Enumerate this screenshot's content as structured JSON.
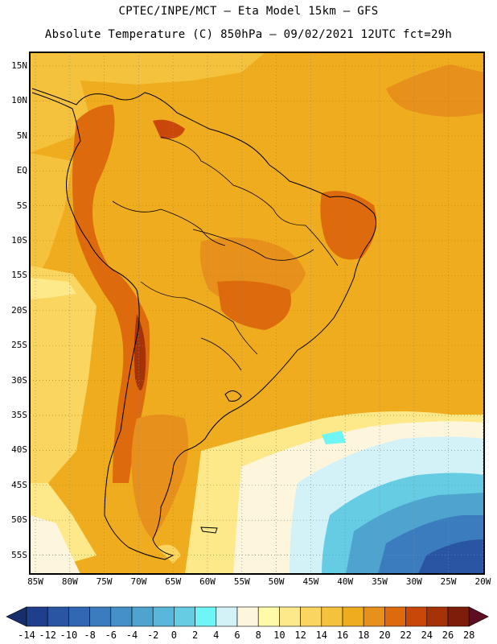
{
  "header": {
    "line1": "CPTEC/INPE/MCT –  Eta Model 15km – GFS",
    "line2": "Absolute Temperature (C) 850hPa – 09/02/2021 12UTC fct=29h"
  },
  "map": {
    "lat_labels": [
      "15N",
      "10N",
      "5N",
      "EQ",
      "5S",
      "10S",
      "15S",
      "20S",
      "25S",
      "30S",
      "35S",
      "40S",
      "45S",
      "50S",
      "55S"
    ],
    "lon_labels": [
      "85W",
      "80W",
      "75W",
      "70W",
      "65W",
      "60W",
      "55W",
      "50W",
      "45W",
      "40W",
      "35W",
      "30W",
      "25W",
      "20W"
    ]
  },
  "colorbar": {
    "labels": [
      "-14",
      "-12",
      "-10",
      "-8",
      "-6",
      "-4",
      "-2",
      "0",
      "2",
      "4",
      "6",
      "8",
      "10",
      "12",
      "14",
      "16",
      "18",
      "20",
      "22",
      "24",
      "26",
      "28"
    ],
    "colors": [
      "#1e3f8c",
      "#2a55a2",
      "#3268b3",
      "#3b7cbf",
      "#4590c8",
      "#4fa3cf",
      "#58b7da",
      "#66cce3",
      "#6ff5f5",
      "#d2f2f7",
      "#fdf5dc",
      "#fefaa8",
      "#fde98a",
      "#fad55f",
      "#f5c23d",
      "#eeac1e",
      "#e7901c",
      "#de6a0e",
      "#c84709",
      "#a63308",
      "#7d1e0a"
    ],
    "under_color": "#162e6c",
    "over_color": "#5e0d22"
  }
}
